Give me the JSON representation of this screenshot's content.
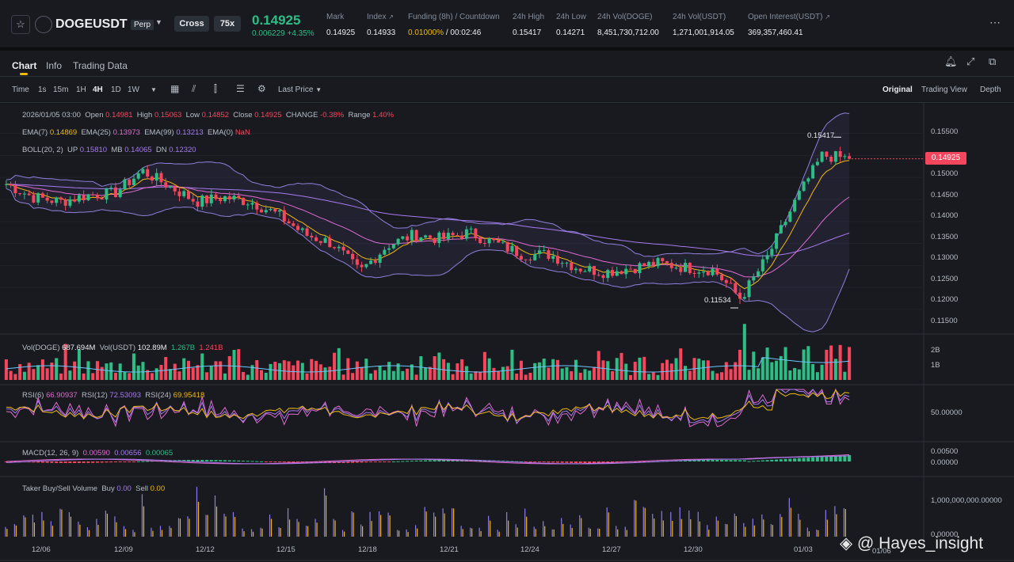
{
  "header": {
    "symbol": "DOGEUSDT",
    "perp_label": "Perp",
    "margin_mode": "Cross",
    "leverage": "75x",
    "price": "0.14925",
    "change": "0.006229 +4.35%",
    "stats": [
      {
        "label": "Mark",
        "value": "0.14925"
      },
      {
        "label": "Index",
        "value": "0.14933"
      },
      {
        "label": "Funding (8h) / Countdown",
        "value_a": "0.01000%",
        "value_b": " / 00:02:46"
      },
      {
        "label": "24h High",
        "value": "0.15417"
      },
      {
        "label": "24h Low",
        "value": "0.14271"
      },
      {
        "label": "24h Vol(DOGE)",
        "value": "8,451,730,712.00"
      },
      {
        "label": "24h Vol(USDT)",
        "value": "1,271,001,914.05"
      },
      {
        "label": "Open Interest(USDT)",
        "value": "369,357,460.41"
      }
    ]
  },
  "tabs": [
    "Chart",
    "Info",
    "Trading Data"
  ],
  "toolbar": {
    "time_label": "Time",
    "intervals": [
      "1s",
      "15m",
      "1H",
      "4H",
      "1D",
      "1W"
    ],
    "active_interval": "4H",
    "price_type": "Last Price",
    "views": [
      "Original",
      "Trading View",
      "Depth"
    ],
    "active_view": "Original"
  },
  "legend": {
    "ohlc": {
      "date": "2026/01/05 03:00",
      "open_label": "Open",
      "open": "0.14981",
      "high_label": "High",
      "high": "0.15063",
      "low_label": "Low",
      "low": "0.14852",
      "close_label": "Close",
      "close": "0.14925",
      "change_label": "CHANGE",
      "change": "-0.38%",
      "range_label": "Range",
      "range": "1.40%"
    },
    "ema": {
      "l7": "EMA(7)",
      "v7": "0.14869",
      "l25": "EMA(25)",
      "v25": "0.13973",
      "l99": "EMA(99)",
      "v99": "0.13213",
      "l0": "EMA(0)",
      "v0": "NaN"
    },
    "boll": {
      "label": "BOLL(20, 2)",
      "up_label": "UP",
      "up": "0.15810",
      "mb_label": "MB",
      "mb": "0.14065",
      "dn_label": "DN",
      "dn": "0.12320"
    },
    "vol": {
      "l1": "Vol(DOGE)",
      "v1": "687.694M",
      "l2": "Vol(USDT)",
      "v2": "102.89M",
      "ma1": "1.267B",
      "ma2": "1.241B"
    },
    "rsi": {
      "l6": "RSI(6)",
      "v6": "66.90937",
      "l12": "RSI(12)",
      "v12": "72.53093",
      "l24": "RSI(24)",
      "v24": "69.95418"
    },
    "macd": {
      "label": "MACD(12, 26, 9)",
      "v1": "0.00590",
      "v2": "0.00656",
      "v3": "0.00065"
    },
    "taker": {
      "label": "Taker Buy/Sell Volume",
      "buy_label": "Buy",
      "buy": "0.00",
      "sell_label": "Sell",
      "sell": "0.00"
    }
  },
  "axes": {
    "price_ticks": [
      "0.15500",
      "0.15000",
      "0.14500",
      "0.14000",
      "0.13500",
      "0.13000",
      "0.12500",
      "0.12000",
      "0.11500"
    ],
    "current_price": "0.14925",
    "volume_ticks": [
      "2B",
      "1B"
    ],
    "rsi_tick": "50.00000",
    "macd_ticks": [
      "0.00500",
      "0.00000"
    ],
    "taker_ticks": [
      "1,000,000,000.00000",
      "0.00000"
    ],
    "dates": [
      "12/06",
      "12/09",
      "12/12",
      "12/15",
      "12/18",
      "12/21",
      "12/24",
      "12/27",
      "12/30",
      "01/03",
      "01/06"
    ]
  },
  "annotations": {
    "high": "0.15417",
    "low": "0.11534"
  },
  "watermark": "@ Hayes_insight",
  "colors": {
    "up": "#2ebd85",
    "down": "#f6465d",
    "ema7": "#f0b90b",
    "ema25": "#e06bd0",
    "ema99": "#a77bf0",
    "accent": "#f0b90b"
  },
  "chart_data": {
    "type": "candlestick",
    "symbol": "DOGEUSDT",
    "interval": "4H",
    "x_range": [
      "12/05",
      "01/05"
    ],
    "ylim": [
      0.113,
      0.158
    ],
    "close_path": [
      [
        "12/05",
        0.1435
      ],
      [
        "12/06",
        0.1405
      ],
      [
        "12/07",
        0.1395
      ],
      [
        "12/08",
        0.141
      ],
      [
        "12/09",
        0.1415
      ],
      [
        "12/10",
        0.1465
      ],
      [
        "12/11",
        0.143
      ],
      [
        "12/12",
        0.1395
      ],
      [
        "12/13",
        0.1405
      ],
      [
        "12/14",
        0.1395
      ],
      [
        "12/15",
        0.1365
      ],
      [
        "12/16",
        0.132
      ],
      [
        "12/17",
        0.13
      ],
      [
        "12/18",
        0.1235
      ],
      [
        "12/19",
        0.1295
      ],
      [
        "12/20",
        0.132
      ],
      [
        "12/21",
        0.131
      ],
      [
        "12/22",
        0.1325
      ],
      [
        "12/23",
        0.13
      ],
      [
        "12/24",
        0.1275
      ],
      [
        "12/25",
        0.1275
      ],
      [
        "12/26",
        0.1245
      ],
      [
        "12/27",
        0.1235
      ],
      [
        "12/28",
        0.1245
      ],
      [
        "12/29",
        0.1255
      ],
      [
        "12/30",
        0.1245
      ],
      [
        "12/31",
        0.124
      ],
      [
        "01/01",
        0.1175
      ],
      [
        "01/02",
        0.127
      ],
      [
        "01/03",
        0.1395
      ],
      [
        "01/04",
        0.15
      ],
      [
        "01/05",
        0.1493
      ]
    ],
    "annotated_high": 0.15417,
    "annotated_low": 0.11534
  }
}
